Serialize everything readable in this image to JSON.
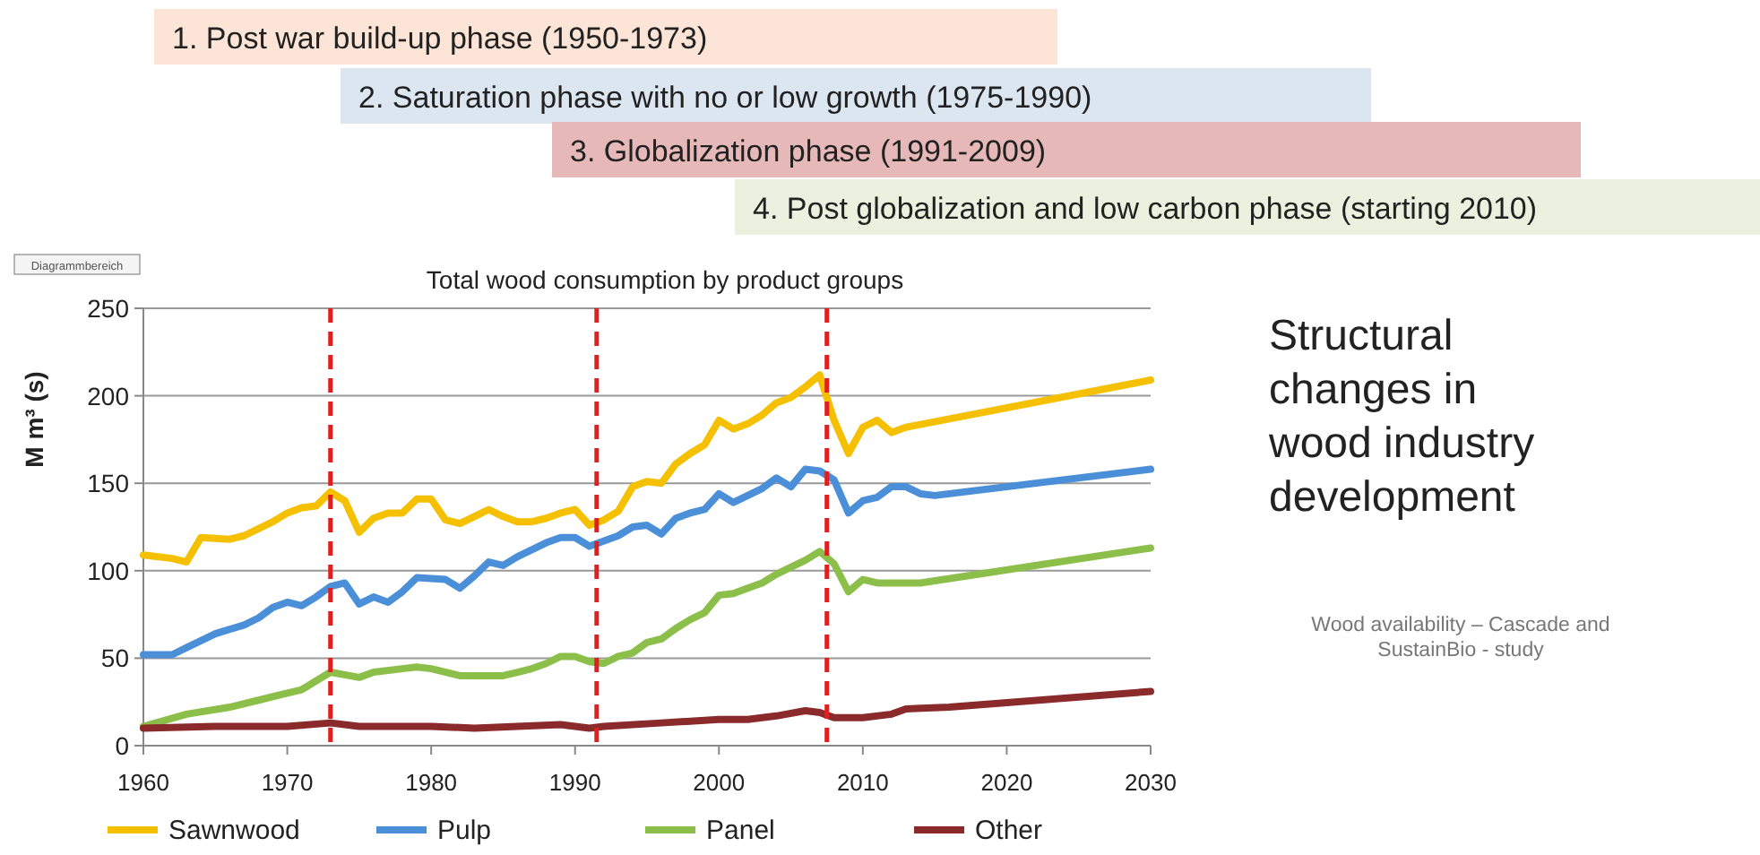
{
  "chart_data": {
    "type": "line",
    "title": "Total wood consumption by product groups",
    "ylabel": "M m³ (s)",
    "xlim": [
      1960,
      2030
    ],
    "xticks": [
      1960,
      1970,
      1980,
      1990,
      2000,
      2010,
      2020,
      2030
    ],
    "ylim": [
      0,
      250
    ],
    "yticks": [
      0,
      50,
      100,
      150,
      200,
      250
    ],
    "grid": "y",
    "legend": "bottom",
    "line_style": "solid",
    "series": [
      {
        "name": "Sawnwood",
        "color": "#f5c000",
        "x": [
          1960,
          1962,
          1963,
          1964,
          1966,
          1967,
          1969,
          1970,
          1971,
          1972,
          1973,
          1974,
          1975,
          1976,
          1977,
          1978,
          1979,
          1980,
          1981,
          1982,
          1983,
          1984,
          1985,
          1986,
          1987,
          1988,
          1989,
          1990,
          1991,
          1992,
          1993,
          1994,
          1995,
          1996,
          1997,
          1998,
          1999,
          2000,
          2001,
          2002,
          2003,
          2004,
          2005,
          2006,
          2007,
          2008,
          2009,
          2010,
          2011,
          2012,
          2013,
          2030
        ],
        "values": [
          109,
          107,
          105,
          119,
          118,
          120,
          128,
          133,
          136,
          137,
          145,
          140,
          122,
          130,
          133,
          133,
          141,
          141,
          129,
          127,
          131,
          135,
          131,
          128,
          128,
          130,
          133,
          135,
          126,
          129,
          134,
          148,
          151,
          150,
          161,
          167,
          172,
          186,
          181,
          184,
          189,
          196,
          199,
          205,
          212,
          186,
          167,
          182,
          186,
          179,
          182,
          209
        ]
      },
      {
        "name": "Pulp",
        "color": "#4a8fd8",
        "x": [
          1960,
          1962,
          1963,
          1965,
          1967,
          1968,
          1969,
          1970,
          1971,
          1972,
          1973,
          1974,
          1975,
          1976,
          1977,
          1978,
          1979,
          1981,
          1982,
          1983,
          1984,
          1985,
          1986,
          1987,
          1988,
          1989,
          1990,
          1991,
          1993,
          1994,
          1995,
          1996,
          1997,
          1998,
          1999,
          2000,
          2001,
          2002,
          2003,
          2004,
          2005,
          2006,
          2007,
          2008,
          2009,
          2010,
          2011,
          2012,
          2013,
          2014,
          2015,
          2030
        ],
        "values": [
          52,
          52,
          56,
          64,
          69,
          73,
          79,
          82,
          80,
          85,
          91,
          93,
          81,
          85,
          82,
          88,
          96,
          95,
          90,
          97,
          105,
          103,
          108,
          112,
          116,
          119,
          119,
          114,
          120,
          125,
          126,
          121,
          130,
          133,
          135,
          144,
          139,
          143,
          147,
          153,
          148,
          158,
          157,
          152,
          133,
          140,
          142,
          148,
          148,
          144,
          143,
          158
        ]
      },
      {
        "name": "Panel",
        "color": "#8cbf4a",
        "x": [
          1960,
          1963,
          1966,
          1968,
          1970,
          1971,
          1972,
          1973,
          1975,
          1976,
          1978,
          1979,
          1980,
          1982,
          1983,
          1985,
          1986,
          1987,
          1988,
          1989,
          1990,
          1991,
          1992,
          1993,
          1994,
          1995,
          1996,
          1997,
          1998,
          1999,
          2000,
          2001,
          2002,
          2003,
          2004,
          2005,
          2006,
          2007,
          2008,
          2009,
          2010,
          2011,
          2014,
          2030
        ],
        "values": [
          11,
          18,
          22,
          26,
          30,
          32,
          37,
          42,
          39,
          42,
          44,
          45,
          44,
          40,
          40,
          40,
          42,
          44,
          47,
          51,
          51,
          48,
          47,
          51,
          53,
          59,
          61,
          67,
          72,
          76,
          86,
          87,
          90,
          93,
          98,
          102,
          106,
          111,
          104,
          88,
          95,
          93,
          93,
          113
        ]
      },
      {
        "name": "Other",
        "color": "#8b2a2a",
        "x": [
          1960,
          1965,
          1970,
          1973,
          1975,
          1980,
          1983,
          1986,
          1989,
          1991,
          1992,
          1996,
          2000,
          2002,
          2004,
          2006,
          2007,
          2008,
          2010,
          2012,
          2013,
          2016,
          2030
        ],
        "values": [
          10,
          11,
          11,
          13,
          11,
          11,
          10,
          11,
          12,
          10,
          11,
          13,
          15,
          15,
          17,
          20,
          19,
          16,
          16,
          18,
          21,
          22,
          31
        ]
      }
    ],
    "ref_lines": [
      {
        "axis": "x",
        "value": 1973,
        "color": "#e02020",
        "line_style": "dashed"
      },
      {
        "axis": "x",
        "value": 1991.5,
        "color": "#e02020",
        "line_style": "dashed"
      },
      {
        "axis": "x",
        "value": 2007.5,
        "color": "#e02020",
        "line_style": "dashed"
      }
    ],
    "annotations": [
      "1. Post war build-up phase (1950-1973)",
      "2. Saturation phase with no or low growth (1975-1990)",
      "3. Globalization phase (1991-2009)",
      "4. Post globalization and low carbon phase (starting 2010)",
      "Structural changes in wood industry development",
      "Wood availability – Cascade and SustainBio - study",
      "Diagrammbereich"
    ]
  }
}
